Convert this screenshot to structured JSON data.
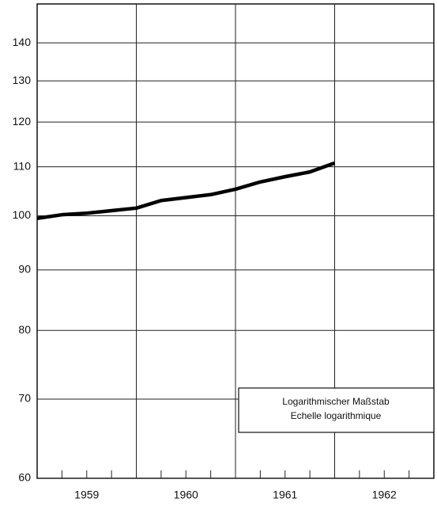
{
  "chart_data": {
    "type": "line",
    "x": [
      1959,
      1959.25,
      1959.5,
      1959.75,
      1960,
      1960.25,
      1960.5,
      1960.75,
      1961,
      1961.25,
      1961.5,
      1961.75,
      1962
    ],
    "series": [
      {
        "name": null,
        "color": "#000000",
        "values": [
          99.5,
          100.2,
          100.5,
          101,
          101.5,
          103,
          103.6,
          104.2,
          105.3,
          106.8,
          107.9,
          108.9,
          110.8
        ]
      }
    ],
    "categories": [
      "1959",
      "1960",
      "1961",
      "1962"
    ],
    "xlim": [
      1959,
      1963
    ],
    "xticks": [
      1960,
      1961,
      1962
    ],
    "xminorticks": [
      1959.25,
      1959.5,
      1959.75,
      1960.25,
      1960.5,
      1960.75,
      1961.25,
      1961.5,
      1961.75,
      1962.25,
      1962.5,
      1962.75
    ],
    "ylim": [
      60,
      151
    ],
    "yticks": [
      60,
      70,
      80,
      90,
      100,
      110,
      120,
      130,
      140
    ],
    "log_y": true,
    "grid": true,
    "annotation": [
      "Logarithmischer Maßstab",
      "Echelle logarithmique"
    ]
  }
}
